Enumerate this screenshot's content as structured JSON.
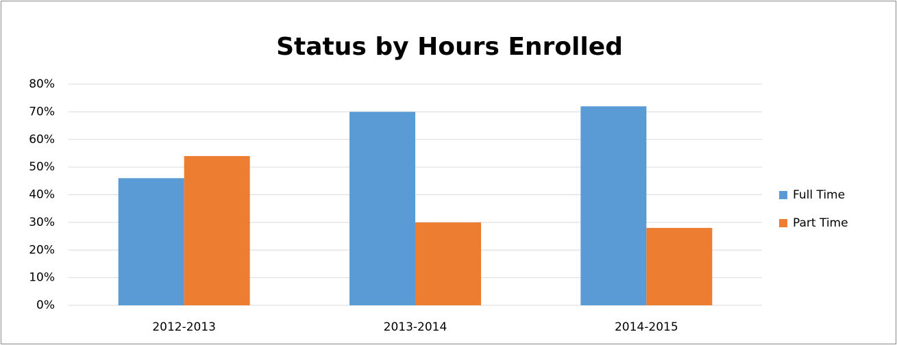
{
  "chart_data": {
    "type": "bar",
    "title": "Status by Hours Enrolled",
    "categories": [
      "2012-2013",
      "2013-2014",
      "2014-2015"
    ],
    "series": [
      {
        "name": "Full Time",
        "color": "#5b9bd5",
        "values": [
          46,
          70,
          72
        ]
      },
      {
        "name": "Part Time",
        "color": "#ed7d31",
        "values": [
          54,
          30,
          28
        ]
      }
    ],
    "ylim": [
      0,
      80
    ],
    "yticks": [
      {
        "value": 0,
        "label": "0%"
      },
      {
        "value": 10,
        "label": "10%"
      },
      {
        "value": 20,
        "label": "20%"
      },
      {
        "value": 30,
        "label": "30%"
      },
      {
        "value": 40,
        "label": "40%"
      },
      {
        "value": 50,
        "label": "50%"
      },
      {
        "value": 60,
        "label": "60%"
      },
      {
        "value": 70,
        "label": "70%"
      },
      {
        "value": 80,
        "label": "80%"
      }
    ],
    "grid": true,
    "legend": "right"
  }
}
